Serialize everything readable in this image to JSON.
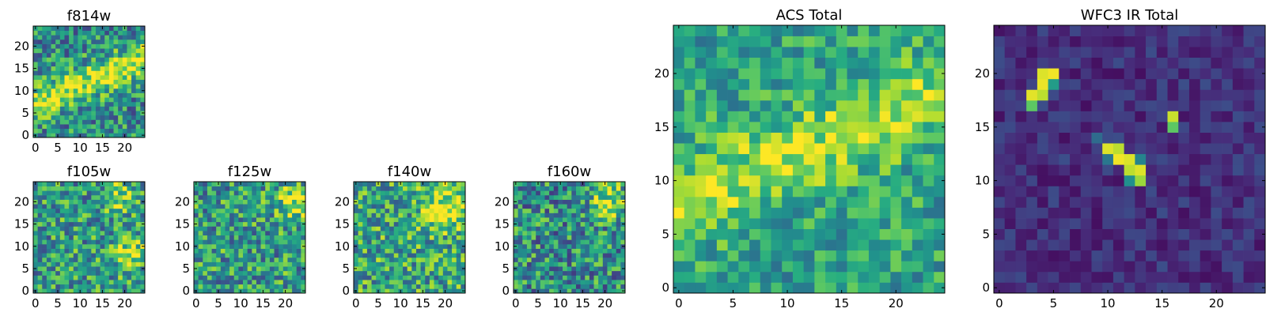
{
  "chart_data": [
    {
      "type": "heatmap",
      "title": "f814w",
      "colormap": "viridis",
      "grid_size": [
        25,
        25
      ],
      "x_ticks": [
        0,
        5,
        10,
        15,
        20
      ],
      "y_ticks": [
        0,
        5,
        10,
        15,
        20
      ],
      "xlim": [
        -0.5,
        24.5
      ],
      "ylim": [
        -0.5,
        24.5
      ],
      "features": [
        {
          "kind": "band",
          "from": [
            0,
            7
          ],
          "to": [
            24,
            17
          ],
          "width": 2.4,
          "amp": 0.45
        }
      ],
      "base": 0.5,
      "noise": 0.3,
      "seed": 814
    },
    {
      "type": "heatmap",
      "title": "f105w",
      "colormap": "viridis",
      "grid_size": [
        25,
        25
      ],
      "x_ticks": [
        0,
        5,
        10,
        15,
        20
      ],
      "y_ticks": [
        0,
        5,
        10,
        15,
        20
      ],
      "xlim": [
        -0.5,
        24.5
      ],
      "ylim": [
        -0.5,
        24.5
      ],
      "features": [
        {
          "kind": "blob",
          "center": [
            21,
            8
          ],
          "sigma": 2.5,
          "amp": 0.35
        },
        {
          "kind": "blob",
          "center": [
            19,
            21
          ],
          "sigma": 2.5,
          "amp": 0.3
        }
      ],
      "base": 0.55,
      "noise": 0.32,
      "seed": 105
    },
    {
      "type": "heatmap",
      "title": "f125w",
      "colormap": "viridis",
      "grid_size": [
        25,
        25
      ],
      "x_ticks": [
        0,
        5,
        10,
        15,
        20
      ],
      "y_ticks": [
        0,
        5,
        10,
        15,
        20
      ],
      "xlim": [
        -0.5,
        24.5
      ],
      "ylim": [
        -0.5,
        24.5
      ],
      "features": [
        {
          "kind": "blob",
          "center": [
            22,
            20
          ],
          "sigma": 3,
          "amp": 0.3
        }
      ],
      "base": 0.55,
      "noise": 0.32,
      "seed": 125
    },
    {
      "type": "heatmap",
      "title": "f140w",
      "colormap": "viridis",
      "grid_size": [
        25,
        25
      ],
      "x_ticks": [
        0,
        5,
        10,
        15,
        20
      ],
      "y_ticks": [
        0,
        5,
        10,
        15,
        20
      ],
      "xlim": [
        -0.5,
        24.5
      ],
      "ylim": [
        -0.5,
        24.5
      ],
      "features": [
        {
          "kind": "blob",
          "center": [
            20,
            19
          ],
          "sigma": 3.5,
          "amp": 0.35
        }
      ],
      "base": 0.6,
      "noise": 0.32,
      "seed": 140
    },
    {
      "type": "heatmap",
      "title": "f160w",
      "colormap": "viridis",
      "grid_size": [
        25,
        25
      ],
      "x_ticks": [
        0,
        5,
        10,
        15,
        20
      ],
      "y_ticks": [
        0,
        5,
        10,
        15,
        20
      ],
      "xlim": [
        -0.5,
        24.5
      ],
      "ylim": [
        -0.5,
        24.5
      ],
      "features": [
        {
          "kind": "blob",
          "center": [
            21,
            20
          ],
          "sigma": 3,
          "amp": 0.35
        }
      ],
      "base": 0.5,
      "noise": 0.33,
      "seed": 160
    },
    {
      "type": "heatmap",
      "title": "ACS Total",
      "colormap": "viridis",
      "grid_size": [
        25,
        25
      ],
      "x_ticks": [
        0,
        5,
        10,
        15,
        20
      ],
      "y_ticks": [
        0,
        5,
        10,
        15,
        20
      ],
      "xlim": [
        -0.5,
        24.5
      ],
      "ylim": [
        -0.5,
        24.5
      ],
      "features": [
        {
          "kind": "band",
          "from": [
            0,
            8
          ],
          "to": [
            24,
            18
          ],
          "width": 2.6,
          "amp": 0.3
        }
      ],
      "base": 0.58,
      "noise": 0.22,
      "seed": 21
    },
    {
      "type": "heatmap",
      "title": "WFC3 IR Total",
      "colormap": "viridis",
      "grid_size": [
        25,
        25
      ],
      "x_ticks": [
        0,
        5,
        10,
        15,
        20
      ],
      "y_ticks": [
        0,
        5,
        10,
        15,
        20
      ],
      "xlim": [
        -0.5,
        24.5
      ],
      "ylim": [
        -0.5,
        24.5
      ],
      "hot_pixels": [
        {
          "x": 4,
          "y": 20,
          "v": 0.95
        },
        {
          "x": 5,
          "y": 20,
          "v": 0.98
        },
        {
          "x": 4,
          "y": 19,
          "v": 0.97
        },
        {
          "x": 3,
          "y": 18,
          "v": 0.96
        },
        {
          "x": 4,
          "y": 18,
          "v": 0.9
        },
        {
          "x": 3,
          "y": 17,
          "v": 0.75
        },
        {
          "x": 5,
          "y": 19,
          "v": 0.55
        },
        {
          "x": 16,
          "y": 16,
          "v": 0.92
        },
        {
          "x": 16,
          "y": 15,
          "v": 0.75
        },
        {
          "x": 10,
          "y": 13,
          "v": 0.95
        },
        {
          "x": 11,
          "y": 13,
          "v": 0.9
        },
        {
          "x": 11,
          "y": 12,
          "v": 0.98
        },
        {
          "x": 12,
          "y": 12,
          "v": 0.95
        },
        {
          "x": 12,
          "y": 11,
          "v": 0.9
        },
        {
          "x": 13,
          "y": 11,
          "v": 0.95
        },
        {
          "x": 13,
          "y": 10,
          "v": 0.85
        },
        {
          "x": 12,
          "y": 10,
          "v": 0.5
        },
        {
          "x": 10,
          "y": 12,
          "v": 0.4
        },
        {
          "x": 13,
          "y": 12,
          "v": 0.45
        },
        {
          "x": 9,
          "y": 14,
          "v": 0.35
        }
      ],
      "base": 0.14,
      "noise": 0.1,
      "seed": 33
    }
  ]
}
